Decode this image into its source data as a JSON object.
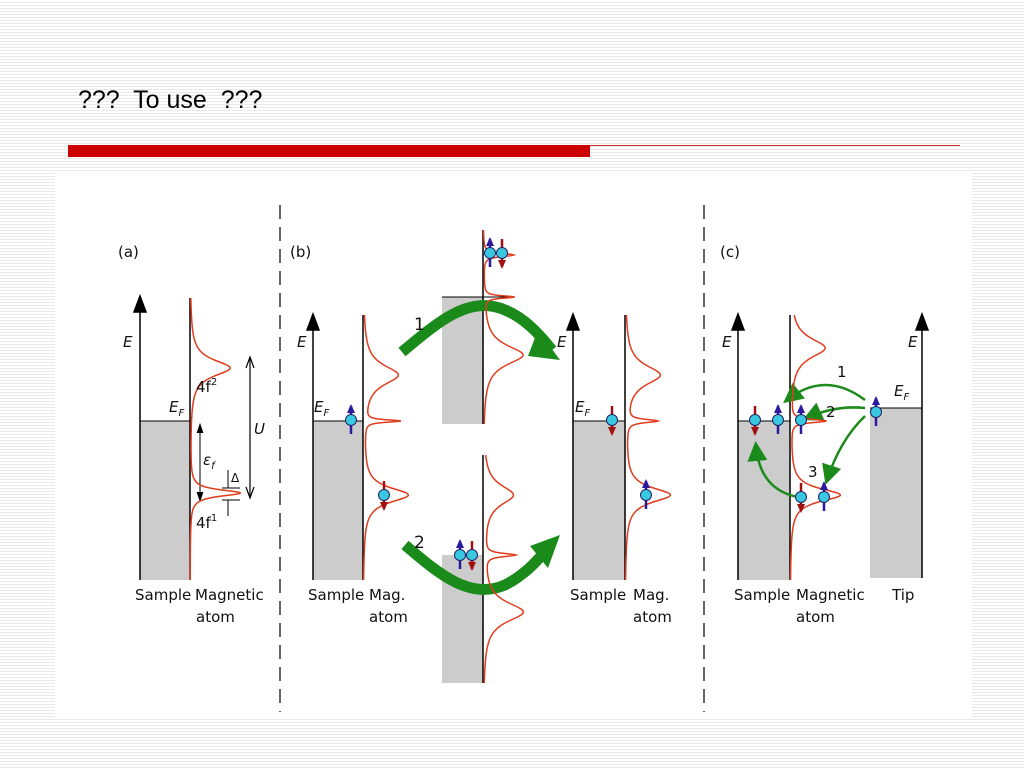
{
  "title": "???  To use  ???",
  "panels": [
    {
      "label": "(a)",
      "axis": "E",
      "fermi": {
        "main": "E",
        "sub": "F"
      },
      "upper": {
        "main": "4f",
        "sup": "2"
      },
      "epsilon": {
        "main": "ε",
        "sub": "f"
      },
      "delta": "Δ",
      "lower": {
        "main": "4f",
        "sup": "1"
      },
      "u": "U",
      "sample": "Sample",
      "atom": [
        "Magnetic",
        "atom"
      ]
    },
    {
      "label": "(b)",
      "axes": [
        "E",
        "E"
      ],
      "fermi": [
        {
          "main": "E",
          "sub": "F"
        },
        {
          "main": "E",
          "sub": "F"
        }
      ],
      "steps": [
        "1",
        "2"
      ],
      "captions": [
        {
          "sample": "Sample",
          "atom": [
            "Mag.",
            "atom"
          ]
        },
        {
          "sample": "Sample",
          "atom": [
            "Mag.",
            "atom"
          ]
        }
      ]
    },
    {
      "label": "(c)",
      "axes": [
        "E",
        "E"
      ],
      "fermi": [
        {
          "main": "E",
          "sub": "F"
        }
      ],
      "steps": [
        "1",
        "2",
        "3"
      ],
      "sample": "Sample",
      "atom": [
        "Magnetic",
        "atom"
      ],
      "tip": "Tip"
    }
  ]
}
